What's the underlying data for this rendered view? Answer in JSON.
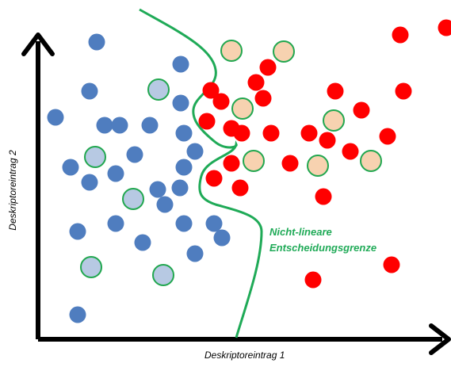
{
  "diagram": {
    "x_axis_label": "Deskriptoreintrag 1",
    "y_axis_label": "Deskriptoreintrag 2",
    "boundary_label": {
      "line1": "Nicht-lineare",
      "line2": "Entscheidungsgrenze"
    },
    "colors": {
      "axis": "#000000",
      "class_a_fill": "#4f7dbf",
      "class_a_highlight_fill": "#b7c9e3",
      "class_b_fill": "#ff0000",
      "class_b_highlight_fill": "#f7d2b0",
      "highlight_ring": "#21a74f",
      "boundary": "#1faa57"
    }
  }
}
